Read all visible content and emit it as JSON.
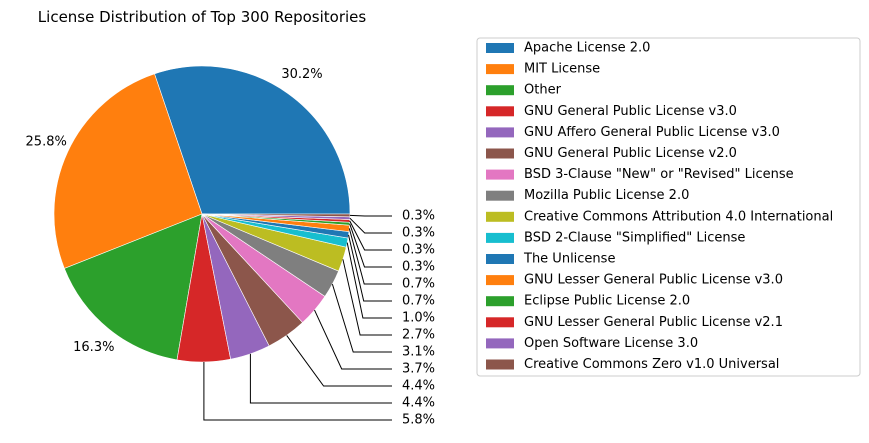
{
  "chart_data": {
    "type": "pie",
    "title": "License Distribution of Top 300 Repositories",
    "legend_position": "right",
    "slices": [
      {
        "label": "Apache License 2.0",
        "value": 30.2,
        "pct_label": "30.2%",
        "color": "#1f77b4"
      },
      {
        "label": "MIT License",
        "value": 25.8,
        "pct_label": "25.8%",
        "color": "#ff7f0e"
      },
      {
        "label": "Other",
        "value": 16.3,
        "pct_label": "16.3%",
        "color": "#2ca02c"
      },
      {
        "label": "GNU General Public License v3.0",
        "value": 5.8,
        "pct_label": "5.8%",
        "color": "#d62728"
      },
      {
        "label": "GNU Affero General Public License v3.0",
        "value": 4.4,
        "pct_label": "4.4%",
        "color": "#9467bd"
      },
      {
        "label": "GNU General Public License v2.0",
        "value": 4.4,
        "pct_label": "4.4%",
        "color": "#8c564b"
      },
      {
        "label": "BSD 3-Clause \"New\" or \"Revised\" License",
        "value": 3.7,
        "pct_label": "3.7%",
        "color": "#e377c2"
      },
      {
        "label": "Mozilla Public License 2.0",
        "value": 3.1,
        "pct_label": "3.1%",
        "color": "#7f7f7f"
      },
      {
        "label": "Creative Commons Attribution 4.0 International",
        "value": 2.7,
        "pct_label": "2.7%",
        "color": "#bcbd22"
      },
      {
        "label": "BSD 2-Clause \"Simplified\" License",
        "value": 1.0,
        "pct_label": "1.0%",
        "color": "#17becf"
      },
      {
        "label": "The Unlicense",
        "value": 0.7,
        "pct_label": "0.7%",
        "color": "#1f77b4"
      },
      {
        "label": "GNU Lesser General Public License v3.0",
        "value": 0.7,
        "pct_label": "0.7%",
        "color": "#ff7f0e"
      },
      {
        "label": "Eclipse Public License 2.0",
        "value": 0.3,
        "pct_label": "0.3%",
        "color": "#2ca02c"
      },
      {
        "label": "GNU Lesser General Public License v2.1",
        "value": 0.3,
        "pct_label": "0.3%",
        "color": "#d62728"
      },
      {
        "label": "Open Software License 3.0",
        "value": 0.3,
        "pct_label": "0.3%",
        "color": "#9467bd"
      },
      {
        "label": "Creative Commons Zero v1.0 Universal",
        "value": 0.3,
        "pct_label": "0.3%",
        "color": "#8c564b"
      }
    ]
  }
}
